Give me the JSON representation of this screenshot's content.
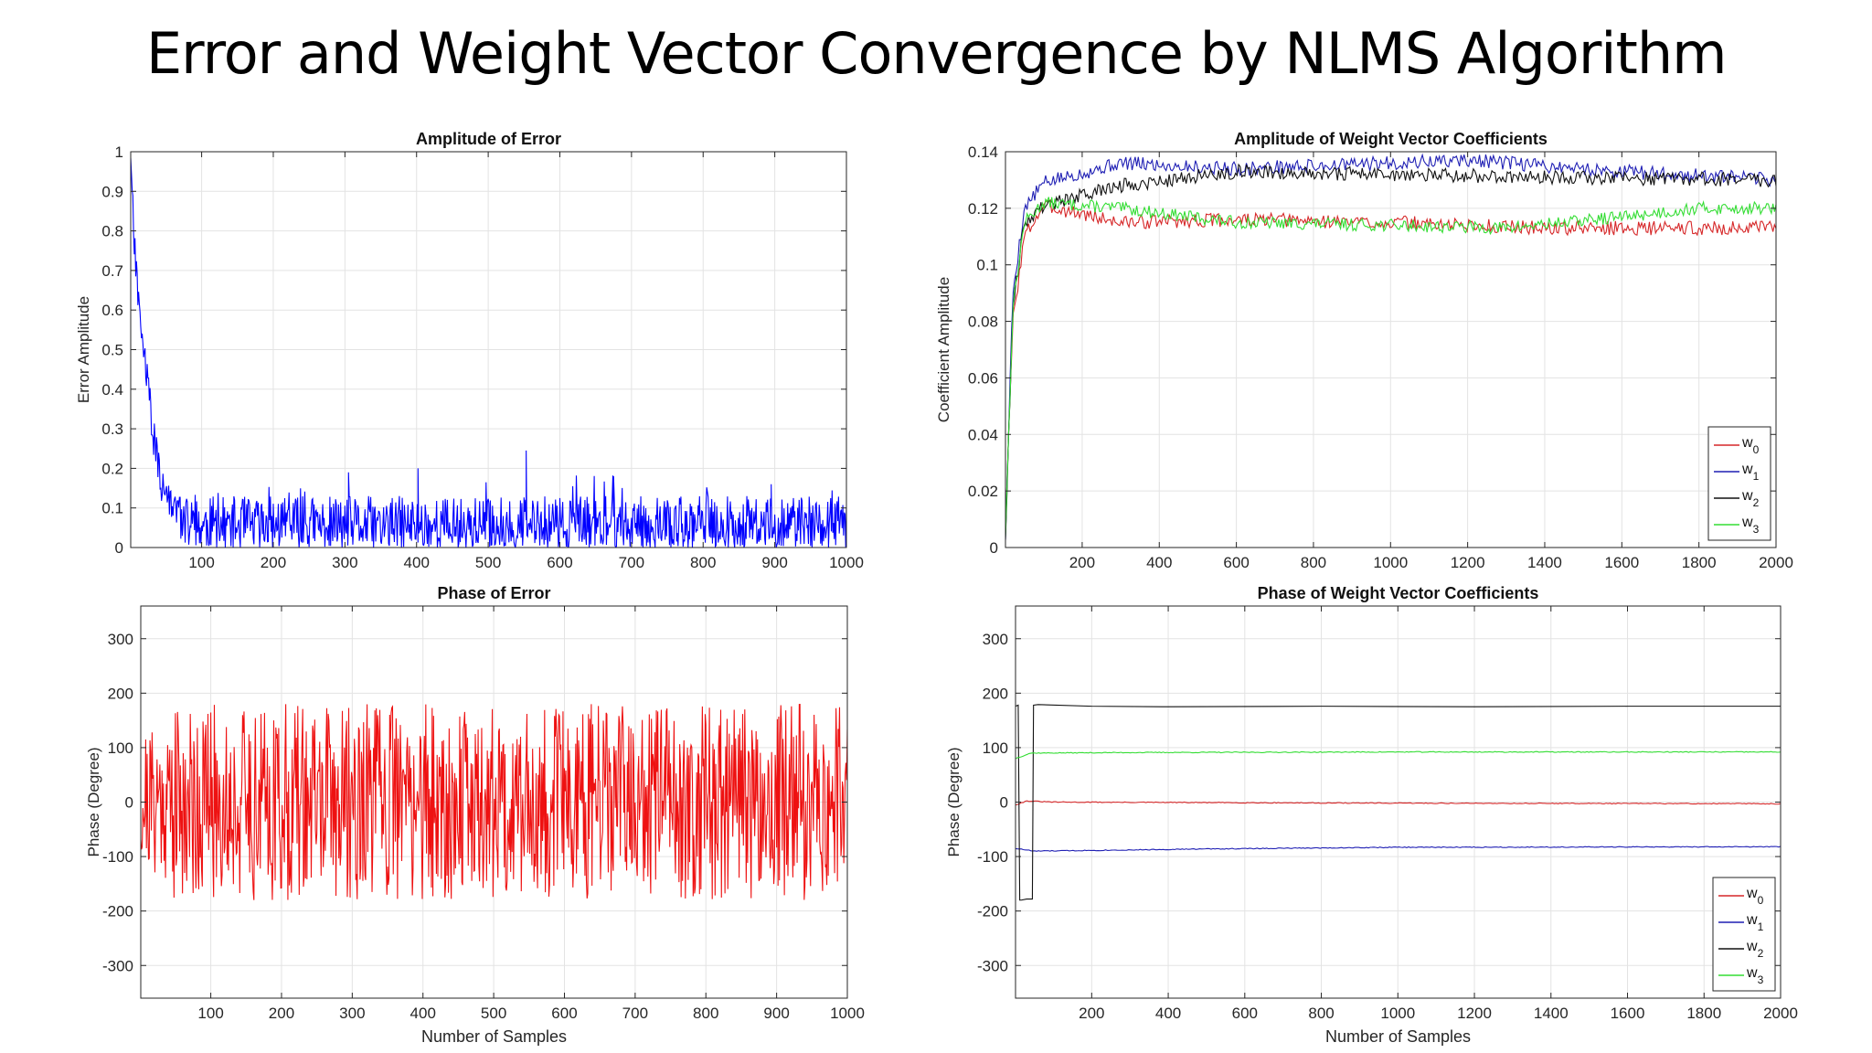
{
  "slide": {
    "title": "Error and Weight Vector Convergence by NLMS Algorithm"
  },
  "chart_data": [
    {
      "id": "amp-error",
      "type": "line",
      "title": "Amplitude of Error",
      "xlabel": "",
      "ylabel": "Error Amplitude",
      "xlim": [
        1,
        1000
      ],
      "ylim": [
        0,
        1
      ],
      "xticks": [
        100,
        200,
        300,
        400,
        500,
        600,
        700,
        800,
        900,
        1000
      ],
      "yticks": [
        0,
        0.1,
        0.2,
        0.3,
        0.4,
        0.5,
        0.6,
        0.7,
        0.8,
        0.9,
        1
      ],
      "grid": true,
      "legend": null,
      "series": [
        {
          "color": "#0000ff",
          "style": "noise",
          "n": 1000,
          "seed": 11,
          "envelope": [
            [
              1,
              1.0
            ],
            [
              8,
              0.75
            ],
            [
              15,
              0.6
            ],
            [
              25,
              0.45
            ],
            [
              35,
              0.3
            ],
            [
              45,
              0.2
            ],
            [
              60,
              0.13
            ],
            [
              1000,
              0.13
            ]
          ],
          "spread": 0.11,
          "clip": [
            0,
            1
          ],
          "peaks": [
            [
              402,
              0.2
            ],
            [
              553,
              0.245
            ],
            [
              305,
              0.19
            ],
            [
              675,
              0.18
            ],
            [
              895,
              0.16
            ]
          ]
        }
      ]
    },
    {
      "id": "amp-weights",
      "type": "line",
      "title": "Amplitude of Weight Vector Coefficients",
      "xlabel": "",
      "ylabel": "Coefficient Amplitude",
      "xlim": [
        1,
        2000
      ],
      "ylim": [
        0,
        0.14
      ],
      "xticks": [
        200,
        400,
        600,
        800,
        1000,
        1200,
        1400,
        1600,
        1800,
        2000
      ],
      "yticks": [
        0,
        0.02,
        0.04,
        0.06,
        0.08,
        0.1,
        0.12,
        0.14
      ],
      "grid": true,
      "legend": "bottom-right",
      "series": [
        {
          "name": "w0",
          "color": "#d62728",
          "style": "walk",
          "n": 500,
          "seed": 3,
          "wiggle": 0.0025,
          "anchors": [
            [
              1,
              0.007
            ],
            [
              20,
              0.08
            ],
            [
              50,
              0.11
            ],
            [
              100,
              0.121
            ],
            [
              300,
              0.115
            ],
            [
              600,
              0.116
            ],
            [
              1000,
              0.115
            ],
            [
              1400,
              0.113
            ],
            [
              2000,
              0.113
            ]
          ]
        },
        {
          "name": "w1",
          "color": "#1f1fb4",
          "style": "walk",
          "n": 500,
          "seed": 5,
          "wiggle": 0.0025,
          "anchors": [
            [
              1,
              0.004
            ],
            [
              20,
              0.09
            ],
            [
              50,
              0.12
            ],
            [
              100,
              0.129
            ],
            [
              300,
              0.136
            ],
            [
              600,
              0.134
            ],
            [
              1000,
              0.136
            ],
            [
              1200,
              0.137
            ],
            [
              1600,
              0.133
            ],
            [
              2000,
              0.13
            ]
          ]
        },
        {
          "name": "w2",
          "color": "#111111",
          "style": "walk",
          "n": 500,
          "seed": 9,
          "wiggle": 0.0025,
          "anchors": [
            [
              1,
              0.004
            ],
            [
              20,
              0.085
            ],
            [
              50,
              0.115
            ],
            [
              100,
              0.121
            ],
            [
              300,
              0.128
            ],
            [
              600,
              0.133
            ],
            [
              1000,
              0.132
            ],
            [
              1400,
              0.131
            ],
            [
              2000,
              0.13
            ]
          ]
        },
        {
          "name": "w3",
          "color": "#33dd33",
          "style": "walk",
          "n": 500,
          "seed": 13,
          "wiggle": 0.0022,
          "anchors": [
            [
              1,
              0.005
            ],
            [
              20,
              0.085
            ],
            [
              50,
              0.115
            ],
            [
              100,
              0.122
            ],
            [
              300,
              0.12
            ],
            [
              600,
              0.115
            ],
            [
              1000,
              0.114
            ],
            [
              1300,
              0.113
            ],
            [
              1600,
              0.117
            ],
            [
              1800,
              0.12
            ],
            [
              2000,
              0.12
            ]
          ]
        }
      ]
    },
    {
      "id": "phase-error",
      "type": "line",
      "title": "Phase of Error",
      "xlabel": "Number of Samples",
      "ylabel": "Phase (Degree)",
      "xlim": [
        1,
        1000
      ],
      "ylim": [
        -360,
        360
      ],
      "xticks": [
        100,
        200,
        300,
        400,
        500,
        600,
        700,
        800,
        900,
        1000
      ],
      "yticks": [
        -300,
        -200,
        -100,
        0,
        100,
        200,
        300
      ],
      "grid": true,
      "legend": null,
      "series": [
        {
          "color": "#ee1111",
          "style": "uniform",
          "n": 1000,
          "seed": 21,
          "range": [
            -180,
            180
          ],
          "early": {
            "until": 40,
            "range": [
              -140,
              150
            ]
          }
        }
      ]
    },
    {
      "id": "phase-weights",
      "type": "line",
      "title": "Phase of Weight Vector Coefficients",
      "xlabel": "Number of Samples",
      "ylabel": "Phase (Degree)",
      "xlim": [
        1,
        2000
      ],
      "ylim": [
        -360,
        360
      ],
      "xticks": [
        200,
        400,
        600,
        800,
        1000,
        1200,
        1400,
        1600,
        1800,
        2000
      ],
      "yticks": [
        -300,
        -200,
        -100,
        0,
        100,
        200,
        300
      ],
      "grid": true,
      "legend": "bottom-right",
      "series": [
        {
          "name": "w0",
          "color": "#d62728",
          "style": "walk",
          "n": 400,
          "seed": 31,
          "wiggle": 0.8,
          "anchors": [
            [
              1,
              -5
            ],
            [
              30,
              2
            ],
            [
              100,
              0
            ],
            [
              1000,
              -2
            ],
            [
              2000,
              -3
            ]
          ]
        },
        {
          "name": "w1",
          "color": "#1f1fb4",
          "style": "walk",
          "n": 400,
          "seed": 33,
          "wiggle": 0.8,
          "anchors": [
            [
              1,
              -85
            ],
            [
              50,
              -90
            ],
            [
              500,
              -86
            ],
            [
              1000,
              -83
            ],
            [
              2000,
              -82
            ]
          ]
        },
        {
          "name": "w2",
          "color": "#111111",
          "style": "points",
          "points": [
            [
              1,
              176
            ],
            [
              8,
              178
            ],
            [
              12,
              -180
            ],
            [
              16,
              -180
            ],
            [
              30,
              -178
            ],
            [
              45,
              -178
            ],
            [
              48,
              178
            ],
            [
              60,
              179
            ],
            [
              200,
              176
            ],
            [
              400,
              175
            ],
            [
              800,
              176
            ],
            [
              1200,
              175
            ],
            [
              1600,
              176
            ],
            [
              2000,
              176
            ]
          ]
        },
        {
          "name": "w3",
          "color": "#33dd33",
          "style": "walk",
          "n": 400,
          "seed": 37,
          "wiggle": 0.8,
          "anchors": [
            [
              1,
              80
            ],
            [
              40,
              90
            ],
            [
              300,
              91
            ],
            [
              1000,
              92
            ],
            [
              2000,
              92
            ]
          ]
        }
      ]
    }
  ]
}
